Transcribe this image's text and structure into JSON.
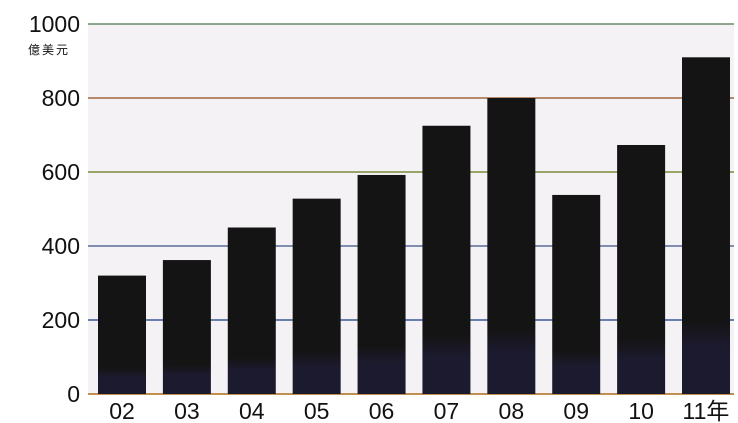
{
  "chart_data": {
    "type": "bar",
    "categories": [
      "02",
      "03",
      "04",
      "05",
      "06",
      "07",
      "08",
      "09",
      "10",
      "11年"
    ],
    "values": [
      320,
      362,
      450,
      528,
      592,
      725,
      800,
      538,
      673,
      910
    ],
    "ylabel": "億美元",
    "ylim": [
      0,
      1000
    ],
    "yticks": [
      0,
      200,
      400,
      600,
      800,
      1000
    ],
    "grid": true,
    "colors": {
      "bar": "#141414",
      "bar_bottom": "#1c1a2e",
      "plot_bg": "#f4f2f4",
      "grid_top": "#6a8a6a",
      "grid_800": "#a06840",
      "grid_600": "#7a8a3a",
      "grid_400": "#5a6a9a",
      "grid_200": "#3a5a9a",
      "axis": "#c09050"
    }
  }
}
